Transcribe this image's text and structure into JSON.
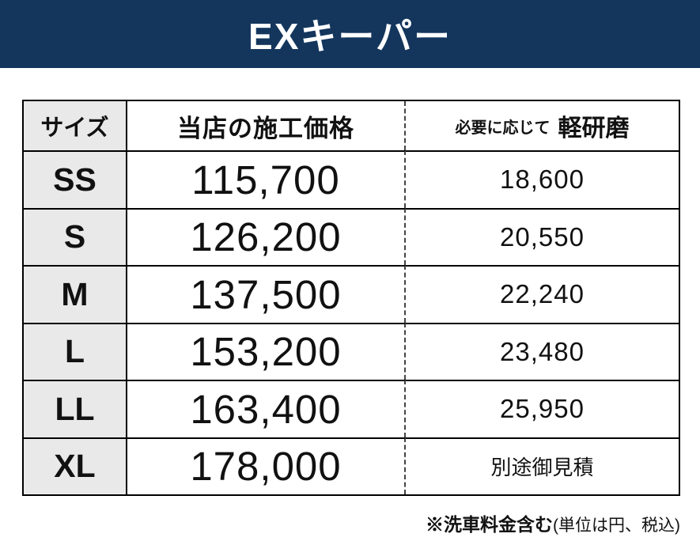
{
  "banner": {
    "title": "EXキーパー"
  },
  "table": {
    "headers": {
      "size": "サイズ",
      "price": "当店の施工価格",
      "polish_prefix": "必要に応じて",
      "polish_label": "軽研磨"
    },
    "rows": [
      {
        "size": "SS",
        "price": "115,700",
        "polish": "18,600"
      },
      {
        "size": "S",
        "price": "126,200",
        "polish": "20,550"
      },
      {
        "size": "M",
        "price": "137,500",
        "polish": "22,240"
      },
      {
        "size": "L",
        "price": "153,200",
        "polish": "23,480"
      },
      {
        "size": "LL",
        "price": "163,400",
        "polish": "25,950"
      },
      {
        "size": "XL",
        "price": "178,000",
        "polish": "別途御見積"
      }
    ],
    "footnote": {
      "bold": "※洗車料金含む",
      "normal": "(単位は円、税込)"
    }
  },
  "colors": {
    "banner_bg": "#14365d",
    "banner_text": "#ffffff",
    "size_column_bg": "#e9e9e9",
    "border": "#000000"
  }
}
